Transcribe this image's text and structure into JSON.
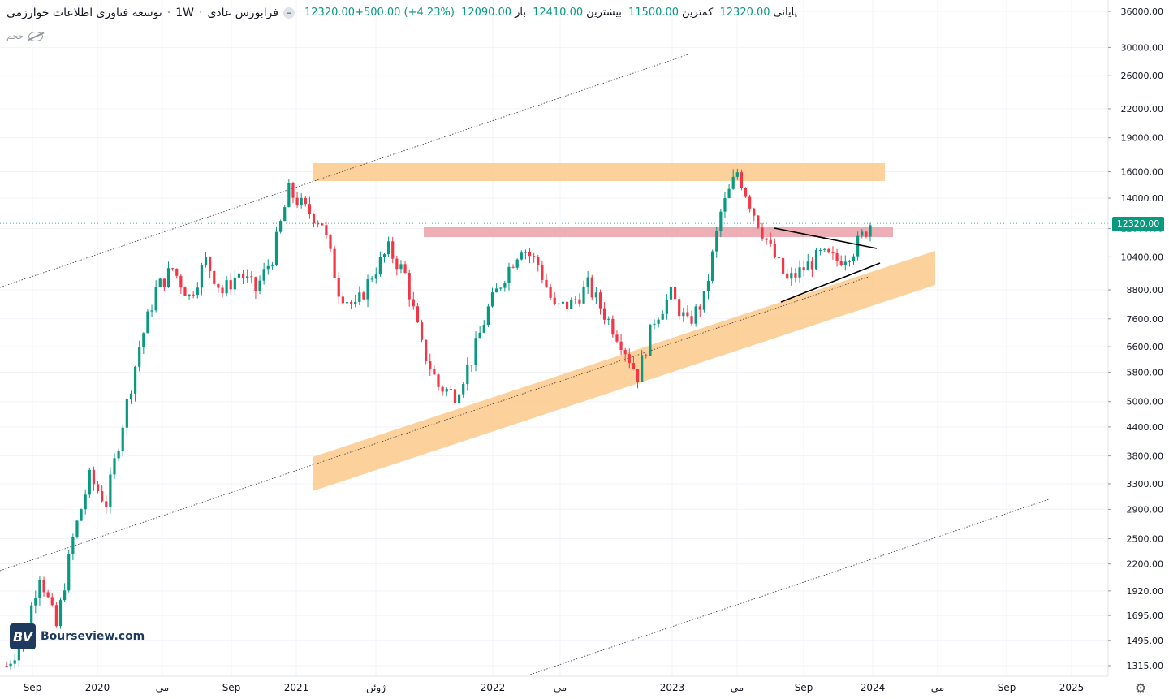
{
  "header": {
    "symbol": "توسعه فناوری اطلاعات خوارزمی",
    "interval": "1W",
    "market": "فرابورس عادی",
    "open_label": "باز",
    "open": "12090.00",
    "high_label": "بیشترین",
    "high": "12410.00",
    "low_label": "کمترین",
    "low": "11500.00",
    "close_label": "پایانی",
    "close": "12320.00",
    "change": "12320.00+500.00 (+4.23%)",
    "volume_label": "حجم"
  },
  "logo": {
    "mark": "BV",
    "text": "Bourseview.com"
  },
  "last_price": "12320.00",
  "colors": {
    "up": "#089981",
    "down": "#f23645",
    "zone_orange": "#fcc98a",
    "zone_red": "#ea9aa2"
  },
  "chart_data": {
    "type": "candlestick",
    "y_scale": "log",
    "ylim": [
      1250,
      38000
    ],
    "y_ticks": [
      "36000.00",
      "30000.00",
      "26000.00",
      "22000.00",
      "19000.00",
      "16000.00",
      "14000.00",
      "12000.00",
      "10400.00",
      "8800.00",
      "7600.00",
      "6600.00",
      "5800.00",
      "5000.00",
      "4400.00",
      "3800.00",
      "3300.00",
      "2900.00",
      "2500.00",
      "2200.00",
      "1920.00",
      "1695.00",
      "1495.00",
      "1315.00"
    ],
    "x_ticks": [
      "Sep",
      "2020",
      "می",
      "Sep",
      "2021",
      "ژوئن",
      "2022",
      "می",
      "2023",
      "می",
      "Sep",
      "2024",
      "می",
      "Sep",
      "2025"
    ],
    "price_path": [
      [
        "2019-08",
        1315
      ],
      [
        "2019-10",
        1500
      ],
      [
        "2019-11",
        2100
      ],
      [
        "2019-12",
        1600
      ],
      [
        "2020-01",
        2500
      ],
      [
        "2020-02",
        3400
      ],
      [
        "2020-03",
        3000
      ],
      [
        "2020-04",
        4500
      ],
      [
        "2020-05",
        6600
      ],
      [
        "2020-06",
        8800
      ],
      [
        "2020-07",
        9800
      ],
      [
        "2020-08",
        8500
      ],
      [
        "2020-09",
        10200
      ],
      [
        "2020-10",
        8700
      ],
      [
        "2020-11",
        9600
      ],
      [
        "2020-12",
        8800
      ],
      [
        "2021-01",
        10400
      ],
      [
        "2021-02",
        14500
      ],
      [
        "2021-03",
        13200
      ],
      [
        "2021-04",
        12400
      ],
      [
        "2021-05",
        8800
      ],
      [
        "2021-06",
        8000
      ],
      [
        "2021-07",
        9500
      ],
      [
        "2021-08",
        10800
      ],
      [
        "2021-09",
        9500
      ],
      [
        "2021-10",
        6600
      ],
      [
        "2021-11",
        5400
      ],
      [
        "2021-12",
        5200
      ],
      [
        "2022-01",
        6200
      ],
      [
        "2022-02",
        8000
      ],
      [
        "2022-03",
        9500
      ],
      [
        "2022-04",
        11000
      ],
      [
        "2022-05",
        10000
      ],
      [
        "2022-06",
        8000
      ],
      [
        "2022-07",
        8200
      ],
      [
        "2022-08",
        9000
      ],
      [
        "2022-09",
        7800
      ],
      [
        "2022-10",
        6800
      ],
      [
        "2022-11",
        5700
      ],
      [
        "2022-12",
        7600
      ],
      [
        "2023-01",
        8600
      ],
      [
        "2023-02",
        7400
      ],
      [
        "2023-03",
        8400
      ],
      [
        "2023-04",
        13000
      ],
      [
        "2023-05",
        16000
      ],
      [
        "2023-06",
        13000
      ],
      [
        "2023-07",
        10800
      ],
      [
        "2023-08",
        9200
      ],
      [
        "2023-09",
        9800
      ],
      [
        "2023-10",
        10500
      ],
      [
        "2023-11",
        10200
      ],
      [
        "2023-12",
        10800
      ],
      [
        "2024-01",
        12320
      ]
    ]
  }
}
